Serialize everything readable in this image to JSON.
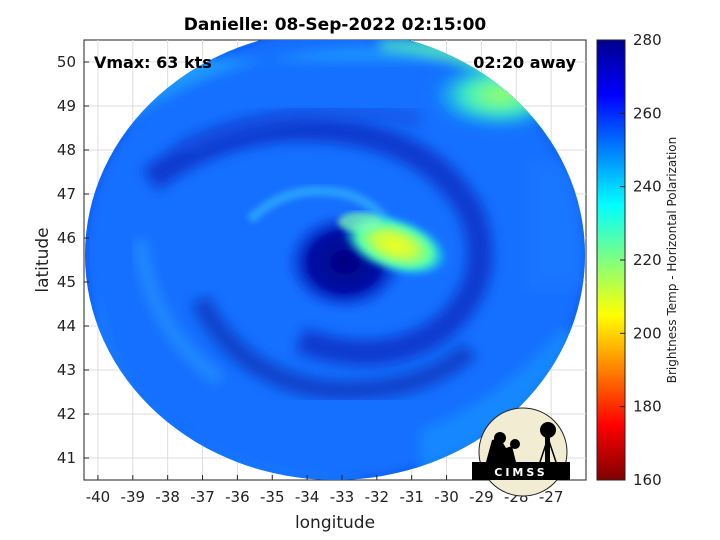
{
  "title": "Danielle: 08-Sep-2022 02:15:00",
  "annotations": {
    "vmax": "Vmax: 63 kts",
    "time_away": "02:20 away"
  },
  "axes": {
    "xlabel": "longitude",
    "ylabel": "latitude",
    "xlim": [
      -40.4,
      -26.0
    ],
    "ylim": [
      40.5,
      50.5
    ],
    "xticks": [
      "-40",
      "-39",
      "-38",
      "-37",
      "-36",
      "-35",
      "-34",
      "-33",
      "-32",
      "-31",
      "-30",
      "-29",
      "-28",
      "-27"
    ],
    "yticks": [
      "41",
      "42",
      "43",
      "44",
      "45",
      "46",
      "47",
      "48",
      "49",
      "50"
    ],
    "grid": true
  },
  "colorbar": {
    "label": "Brightness Temp - Horizontal Polarization",
    "range": [
      160,
      280
    ],
    "ticks": [
      "160",
      "180",
      "200",
      "220",
      "240",
      "260",
      "280"
    ],
    "colors": [
      "#800000",
      "#ff0000",
      "#ff8000",
      "#ffff00",
      "#80ff80",
      "#00ffff",
      "#0080ff",
      "#0000ff",
      "#00008f"
    ]
  },
  "logo": {
    "text": "CIMSS"
  },
  "map": {
    "type": "passive-microwave brightness temperature swath",
    "center": {
      "lon": -33.2,
      "lat": 45.6
    },
    "features": [
      {
        "name": "eye-core",
        "lon": -33.2,
        "lat": 45.5,
        "temp": 268
      },
      {
        "name": "cold-cloud-arc",
        "lon": -31.9,
        "lat": 45.9,
        "temp": 212
      },
      {
        "name": "northeast-warm-patch",
        "lon": -29.5,
        "lat": 49.3,
        "temp": 225
      },
      {
        "name": "spiral-band",
        "lon": -35.5,
        "lat": 46.8,
        "temp": 262
      }
    ]
  }
}
